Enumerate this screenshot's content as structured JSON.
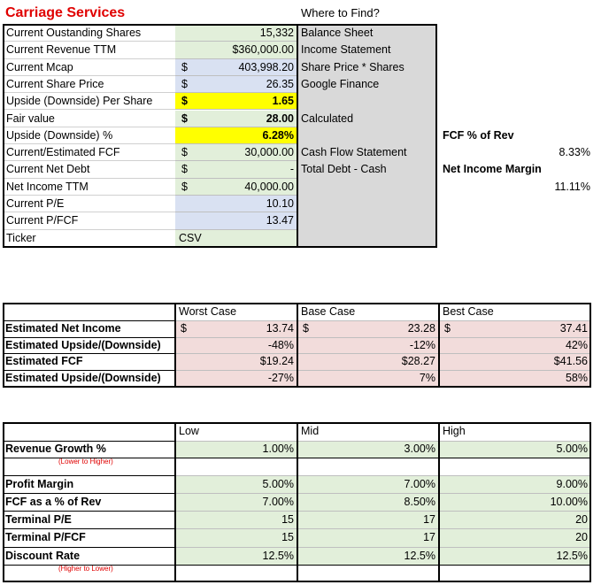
{
  "header": {
    "title": "Carriage Services",
    "where_header": "Where to Find?"
  },
  "inputs": {
    "rows": [
      {
        "label": "Current Oustanding Shares",
        "value": "15,332",
        "source": "Balance Sheet"
      },
      {
        "label": "Current Revenue TTM",
        "value": "$360,000.00",
        "source": "Income Statement"
      },
      {
        "label": "Current Mcap",
        "currency": "$",
        "value": "403,998.20",
        "source": "Share Price * Shares"
      },
      {
        "label": "Current Share Price",
        "currency": "$",
        "value": "26.35",
        "source": "Google Finance"
      },
      {
        "label": "Upside (Downside) Per Share",
        "currency": "$",
        "value": "1.65"
      },
      {
        "label": "Fair value",
        "currency": "$",
        "value": "28.00",
        "source": "Calculated"
      },
      {
        "label": "Upside (Downside) %",
        "value": "6.28%"
      },
      {
        "label": "Current/Estimated FCF",
        "currency": "$",
        "value": "30,000.00",
        "source": "Cash Flow Statement"
      },
      {
        "label": "Current Net Debt",
        "currency": "$",
        "value": "-",
        "source": "Total Debt - Cash"
      },
      {
        "label": "Net Income TTM",
        "currency": "$",
        "value": "40,000.00"
      },
      {
        "label": "Current P/E",
        "value": "10.10"
      },
      {
        "label": "Current P/FCF",
        "value": "13.47"
      },
      {
        "label": "Ticker",
        "value": "CSV"
      }
    ]
  },
  "side_metrics": [
    {
      "label": "FCF % of Rev",
      "value": "8.33%"
    },
    {
      "label": "Net Income Margin",
      "value": "11.11%"
    }
  ],
  "scenarios": {
    "columns": [
      "Worst Case",
      "Base Case",
      "Best Case"
    ],
    "rows": [
      {
        "label": "Estimated Net Income",
        "cells": [
          {
            "currency": "$",
            "value": "13.74"
          },
          {
            "currency": "$",
            "value": "23.28"
          },
          {
            "currency": "$",
            "value": "37.41"
          }
        ]
      },
      {
        "label": "Estimated Upside/(Downside)",
        "cells": [
          {
            "value": "-48%"
          },
          {
            "value": "-12%"
          },
          {
            "value": "42%"
          }
        ]
      },
      {
        "label": "Estimated FCF",
        "cells": [
          {
            "value": "$19.24"
          },
          {
            "value": "$28.27"
          },
          {
            "value": "$41.56"
          }
        ]
      },
      {
        "label": "Estimated Upside/(Downside)",
        "cells": [
          {
            "value": "-27%"
          },
          {
            "value": "7%"
          },
          {
            "value": "58%"
          }
        ]
      }
    ]
  },
  "assumptions": {
    "columns": [
      "Low",
      "Mid",
      "High"
    ],
    "rows": [
      {
        "label": "Revenue Growth %",
        "note": "(Lower to Higher)",
        "values": [
          "1.00%",
          "3.00%",
          "5.00%"
        ]
      },
      {
        "label": "Profit Margin",
        "values": [
          "5.00%",
          "7.00%",
          "9.00%"
        ]
      },
      {
        "label": "FCF as a % of Rev",
        "values": [
          "7.00%",
          "8.50%",
          "10.00%"
        ]
      },
      {
        "label": "Terminal P/E",
        "values": [
          "15",
          "17",
          "20"
        ]
      },
      {
        "label": "Terminal P/FCF",
        "values": [
          "15",
          "17",
          "20"
        ]
      },
      {
        "label": "Discount Rate",
        "note": "(Higher to Lower)",
        "values": [
          "12.5%",
          "12.5%",
          "12.5%"
        ]
      }
    ]
  }
}
